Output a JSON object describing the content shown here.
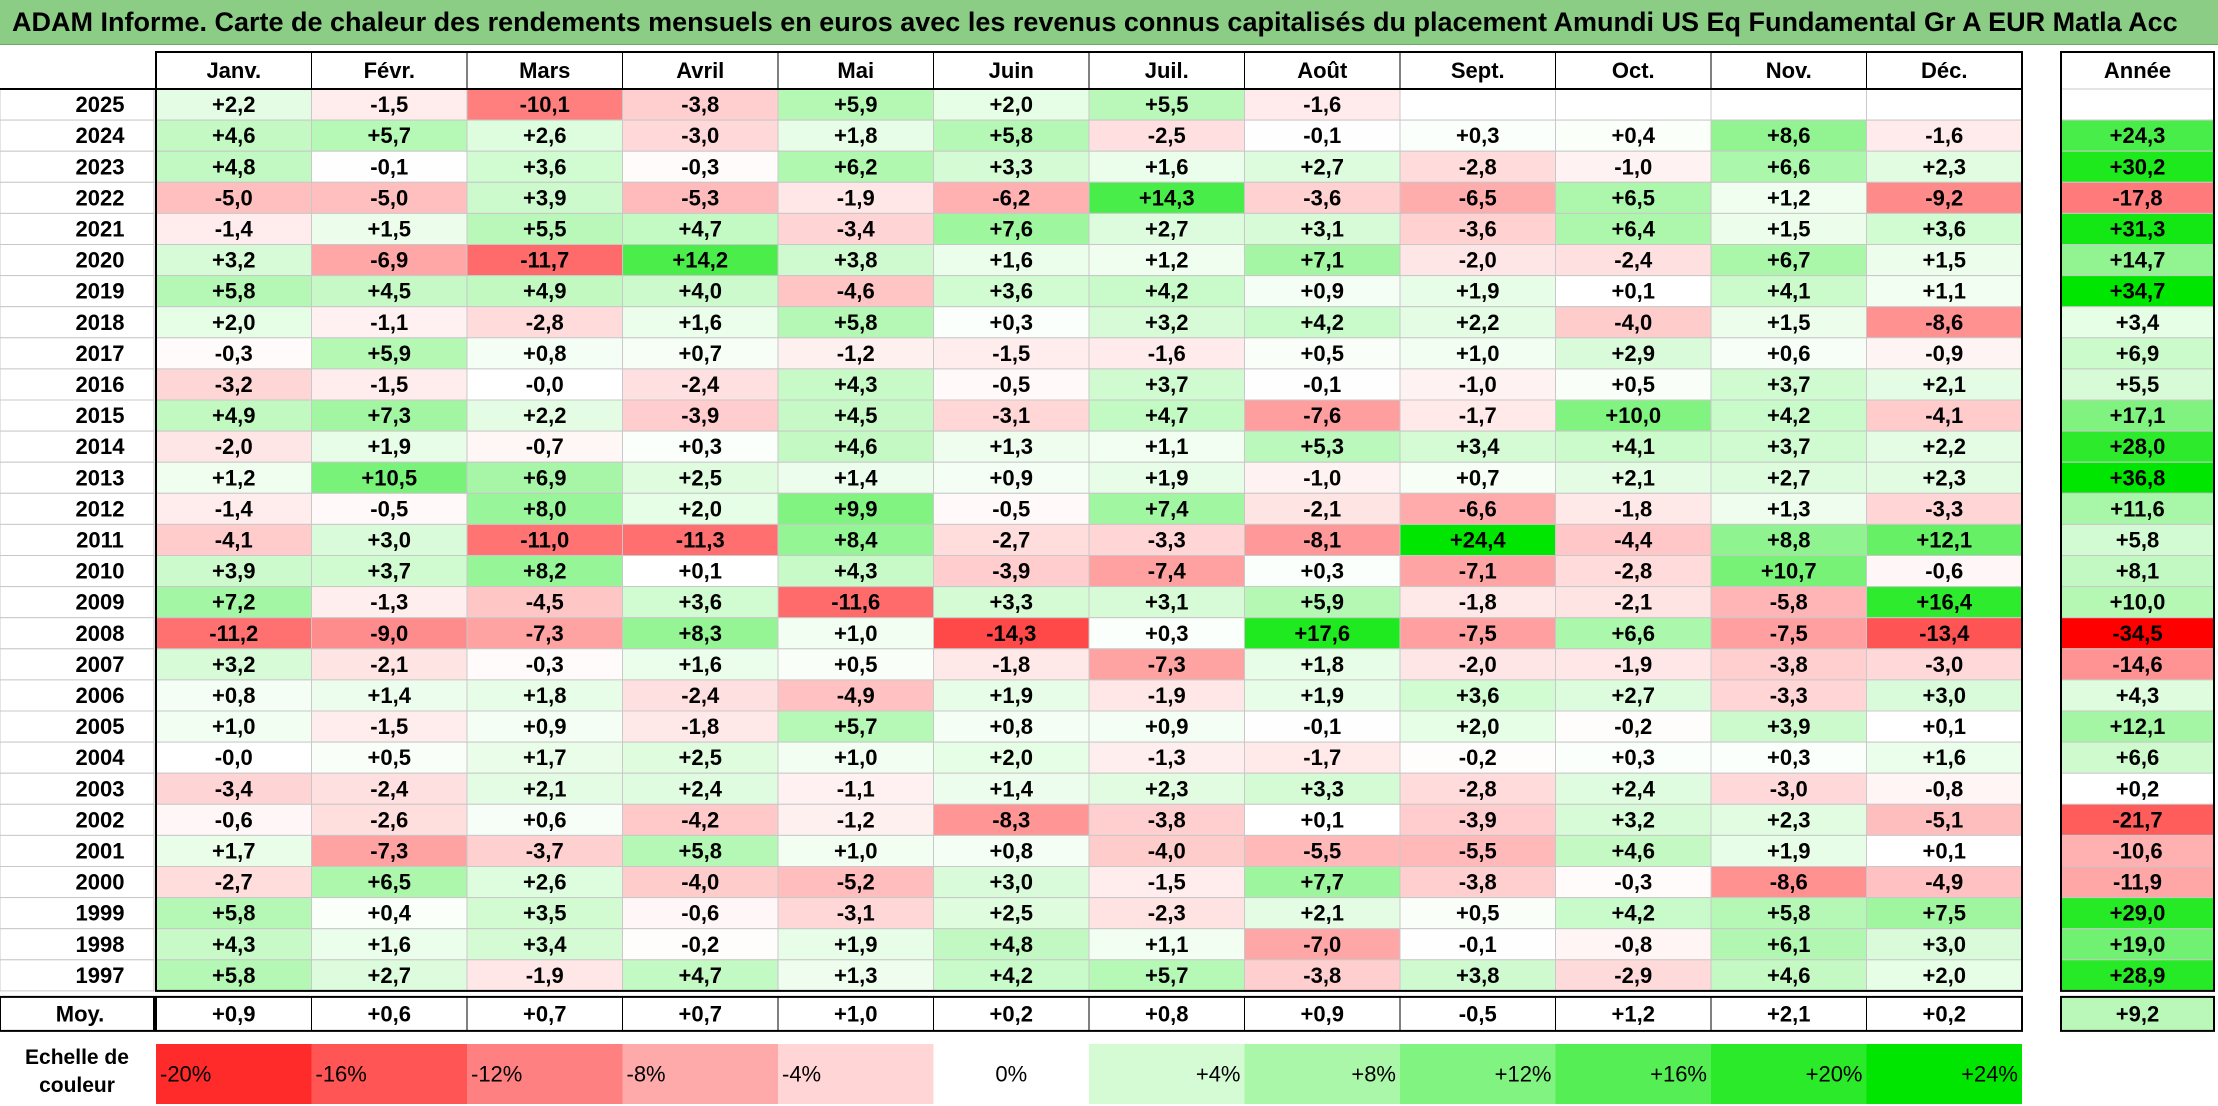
{
  "title": "ADAM Informe. Carte de chaleur des rendements mensuels en euros avec les revenus connus capitalisés du placement Amundi US Eq Fundamental Gr A EUR Matla Acc",
  "colors": {
    "title_bg": "#8ccd86",
    "negative_max": "#ff0000",
    "zero": "#ffffff",
    "positive_max": "#00e600"
  },
  "chart_data": {
    "type": "heatmap",
    "title": "ADAM Informe. Carte de chaleur des rendements mensuels en euros avec les revenus connus capitalisés du placement Amundi US Eq Fundamental Gr A EUR Matla Acc",
    "months": [
      "Janv.",
      "Févr.",
      "Mars",
      "Avril",
      "Mai",
      "Juin",
      "Juil.",
      "Août",
      "Sept.",
      "Oct.",
      "Nov.",
      "Déc."
    ],
    "year_header": "Année",
    "rows": [
      {
        "year": "2025",
        "values": [
          "+2,2",
          "-1,5",
          "-10,1",
          "-3,8",
          "+5,9",
          "+2,0",
          "+5,5",
          "-1,6",
          "",
          "",
          "",
          ""
        ],
        "annual": ""
      },
      {
        "year": "2024",
        "values": [
          "+4,6",
          "+5,7",
          "+2,6",
          "-3,0",
          "+1,8",
          "+5,8",
          "-2,5",
          "-0,1",
          "+0,3",
          "+0,4",
          "+8,6",
          "-1,6"
        ],
        "annual": "+24,3"
      },
      {
        "year": "2023",
        "values": [
          "+4,8",
          "-0,1",
          "+3,6",
          "-0,3",
          "+6,2",
          "+3,3",
          "+1,6",
          "+2,7",
          "-2,8",
          "-1,0",
          "+6,6",
          "+2,3"
        ],
        "annual": "+30,2"
      },
      {
        "year": "2022",
        "values": [
          "-5,0",
          "-5,0",
          "+3,9",
          "-5,3",
          "-1,9",
          "-6,2",
          "+14,3",
          "-3,6",
          "-6,5",
          "+6,5",
          "+1,2",
          "-9,2"
        ],
        "annual": "-17,8"
      },
      {
        "year": "2021",
        "values": [
          "-1,4",
          "+1,5",
          "+5,5",
          "+4,7",
          "-3,4",
          "+7,6",
          "+2,7",
          "+3,1",
          "-3,6",
          "+6,4",
          "+1,5",
          "+3,6"
        ],
        "annual": "+31,3"
      },
      {
        "year": "2020",
        "values": [
          "+3,2",
          "-6,9",
          "-11,7",
          "+14,2",
          "+3,8",
          "+1,6",
          "+1,2",
          "+7,1",
          "-2,0",
          "-2,4",
          "+6,7",
          "+1,5"
        ],
        "annual": "+14,7"
      },
      {
        "year": "2019",
        "values": [
          "+5,8",
          "+4,5",
          "+4,9",
          "+4,0",
          "-4,6",
          "+3,6",
          "+4,2",
          "+0,9",
          "+1,9",
          "+0,1",
          "+4,1",
          "+1,1"
        ],
        "annual": "+34,7"
      },
      {
        "year": "2018",
        "values": [
          "+2,0",
          "-1,1",
          "-2,8",
          "+1,6",
          "+5,8",
          "+0,3",
          "+3,2",
          "+4,2",
          "+2,2",
          "-4,0",
          "+1,5",
          "-8,6"
        ],
        "annual": "+3,4"
      },
      {
        "year": "2017",
        "values": [
          "-0,3",
          "+5,9",
          "+0,8",
          "+0,7",
          "-1,2",
          "-1,5",
          "-1,6",
          "+0,5",
          "+1,0",
          "+2,9",
          "+0,6",
          "-0,9"
        ],
        "annual": "+6,9"
      },
      {
        "year": "2016",
        "values": [
          "-3,2",
          "-1,5",
          "-0,0",
          "-2,4",
          "+4,3",
          "-0,5",
          "+3,7",
          "-0,1",
          "-1,0",
          "+0,5",
          "+3,7",
          "+2,1"
        ],
        "annual": "+5,5"
      },
      {
        "year": "2015",
        "values": [
          "+4,9",
          "+7,3",
          "+2,2",
          "-3,9",
          "+4,5",
          "-3,1",
          "+4,7",
          "-7,6",
          "-1,7",
          "+10,0",
          "+4,2",
          "-4,1"
        ],
        "annual": "+17,1"
      },
      {
        "year": "2014",
        "values": [
          "-2,0",
          "+1,9",
          "-0,7",
          "+0,3",
          "+4,6",
          "+1,3",
          "+1,1",
          "+5,3",
          "+3,4",
          "+4,1",
          "+3,7",
          "+2,2"
        ],
        "annual": "+28,0"
      },
      {
        "year": "2013",
        "values": [
          "+1,2",
          "+10,5",
          "+6,9",
          "+2,5",
          "+1,4",
          "+0,9",
          "+1,9",
          "-1,0",
          "+0,7",
          "+2,1",
          "+2,7",
          "+2,3"
        ],
        "annual": "+36,8"
      },
      {
        "year": "2012",
        "values": [
          "-1,4",
          "-0,5",
          "+8,0",
          "+2,0",
          "+9,9",
          "-0,5",
          "+7,4",
          "-2,1",
          "-6,6",
          "-1,8",
          "+1,3",
          "-3,3"
        ],
        "annual": "+11,6"
      },
      {
        "year": "2011",
        "values": [
          "-4,1",
          "+3,0",
          "-11,0",
          "-11,3",
          "+8,4",
          "-2,7",
          "-3,3",
          "-8,1",
          "+24,4",
          "-4,4",
          "+8,8",
          "+12,1"
        ],
        "annual": "+5,8"
      },
      {
        "year": "2010",
        "values": [
          "+3,9",
          "+3,7",
          "+8,2",
          "+0,1",
          "+4,3",
          "-3,9",
          "-7,4",
          "+0,3",
          "-7,1",
          "-2,8",
          "+10,7",
          "-0,6"
        ],
        "annual": "+8,1"
      },
      {
        "year": "2009",
        "values": [
          "+7,2",
          "-1,3",
          "-4,5",
          "+3,6",
          "-11,6",
          "+3,3",
          "+3,1",
          "+5,9",
          "-1,8",
          "-2,1",
          "-5,8",
          "+16,4"
        ],
        "annual": "+10,0"
      },
      {
        "year": "2008",
        "values": [
          "-11,2",
          "-9,0",
          "-7,3",
          "+8,3",
          "+1,0",
          "-14,3",
          "+0,3",
          "+17,6",
          "-7,5",
          "+6,6",
          "-7,5",
          "-13,4"
        ],
        "annual": "-34,5"
      },
      {
        "year": "2007",
        "values": [
          "+3,2",
          "-2,1",
          "-0,3",
          "+1,6",
          "+0,5",
          "-1,8",
          "-7,3",
          "+1,8",
          "-2,0",
          "-1,9",
          "-3,8",
          "-3,0"
        ],
        "annual": "-14,6"
      },
      {
        "year": "2006",
        "values": [
          "+0,8",
          "+1,4",
          "+1,8",
          "-2,4",
          "-4,9",
          "+1,9",
          "-1,9",
          "+1,9",
          "+3,6",
          "+2,7",
          "-3,3",
          "+3,0"
        ],
        "annual": "+4,3"
      },
      {
        "year": "2005",
        "values": [
          "+1,0",
          "-1,5",
          "+0,9",
          "-1,8",
          "+5,7",
          "+0,8",
          "+0,9",
          "-0,1",
          "+2,0",
          "-0,2",
          "+3,9",
          "+0,1"
        ],
        "annual": "+12,1"
      },
      {
        "year": "2004",
        "values": [
          "-0,0",
          "+0,5",
          "+1,7",
          "+2,5",
          "+1,0",
          "+2,0",
          "-1,3",
          "-1,7",
          "-0,2",
          "+0,3",
          "+0,3",
          "+1,6"
        ],
        "annual": "+6,6"
      },
      {
        "year": "2003",
        "values": [
          "-3,4",
          "-2,4",
          "+2,1",
          "+2,4",
          "-1,1",
          "+1,4",
          "+2,3",
          "+3,3",
          "-2,8",
          "+2,4",
          "-3,0",
          "-0,8"
        ],
        "annual": "+0,2"
      },
      {
        "year": "2002",
        "values": [
          "-0,6",
          "-2,6",
          "+0,6",
          "-4,2",
          "-1,2",
          "-8,3",
          "-3,8",
          "+0,1",
          "-3,9",
          "+3,2",
          "+2,3",
          "-5,1"
        ],
        "annual": "-21,7"
      },
      {
        "year": "2001",
        "values": [
          "+1,7",
          "-7,3",
          "-3,7",
          "+5,8",
          "+1,0",
          "+0,8",
          "-4,0",
          "-5,5",
          "-5,5",
          "+4,6",
          "+1,9",
          "+0,1"
        ],
        "annual": "-10,6"
      },
      {
        "year": "2000",
        "values": [
          "-2,7",
          "+6,5",
          "+2,6",
          "-4,0",
          "-5,2",
          "+3,0",
          "-1,5",
          "+7,7",
          "-3,8",
          "-0,3",
          "-8,6",
          "-4,9"
        ],
        "annual": "-11,9"
      },
      {
        "year": "1999",
        "values": [
          "+5,8",
          "+0,4",
          "+3,5",
          "-0,6",
          "-3,1",
          "+2,5",
          "-2,3",
          "+2,1",
          "+0,5",
          "+4,2",
          "+5,8",
          "+7,5"
        ],
        "annual": "+29,0"
      },
      {
        "year": "1998",
        "values": [
          "+4,3",
          "+1,6",
          "+3,4",
          "-0,2",
          "+1,9",
          "+4,8",
          "+1,1",
          "-7,0",
          "-0,1",
          "-0,8",
          "+6,1",
          "+3,0"
        ],
        "annual": "+19,0"
      },
      {
        "year": "1997",
        "values": [
          "+5,8",
          "+2,7",
          "-1,9",
          "+4,7",
          "+1,3",
          "+4,2",
          "+5,7",
          "-3,8",
          "+3,8",
          "-2,9",
          "+4,6",
          "+2,0"
        ],
        "annual": "+28,9"
      }
    ],
    "average": {
      "label": "Moy.",
      "values": [
        "+0,9",
        "+0,6",
        "+0,7",
        "+0,7",
        "+1,0",
        "+0,2",
        "+0,8",
        "+0,9",
        "-0,5",
        "+1,2",
        "+2,1",
        "+0,2"
      ],
      "annual": "+9,2"
    },
    "scale": {
      "label": "Echelle de couleur",
      "items": [
        "-20%",
        "-16%",
        "-12%",
        "-8%",
        "-4%",
        "0%",
        "+4%",
        "+8%",
        "+12%",
        "+16%",
        "+20%",
        "+24%"
      ],
      "values": [
        -20,
        -16,
        -12,
        -8,
        -4,
        0,
        4,
        8,
        12,
        16,
        20,
        24
      ]
    }
  }
}
